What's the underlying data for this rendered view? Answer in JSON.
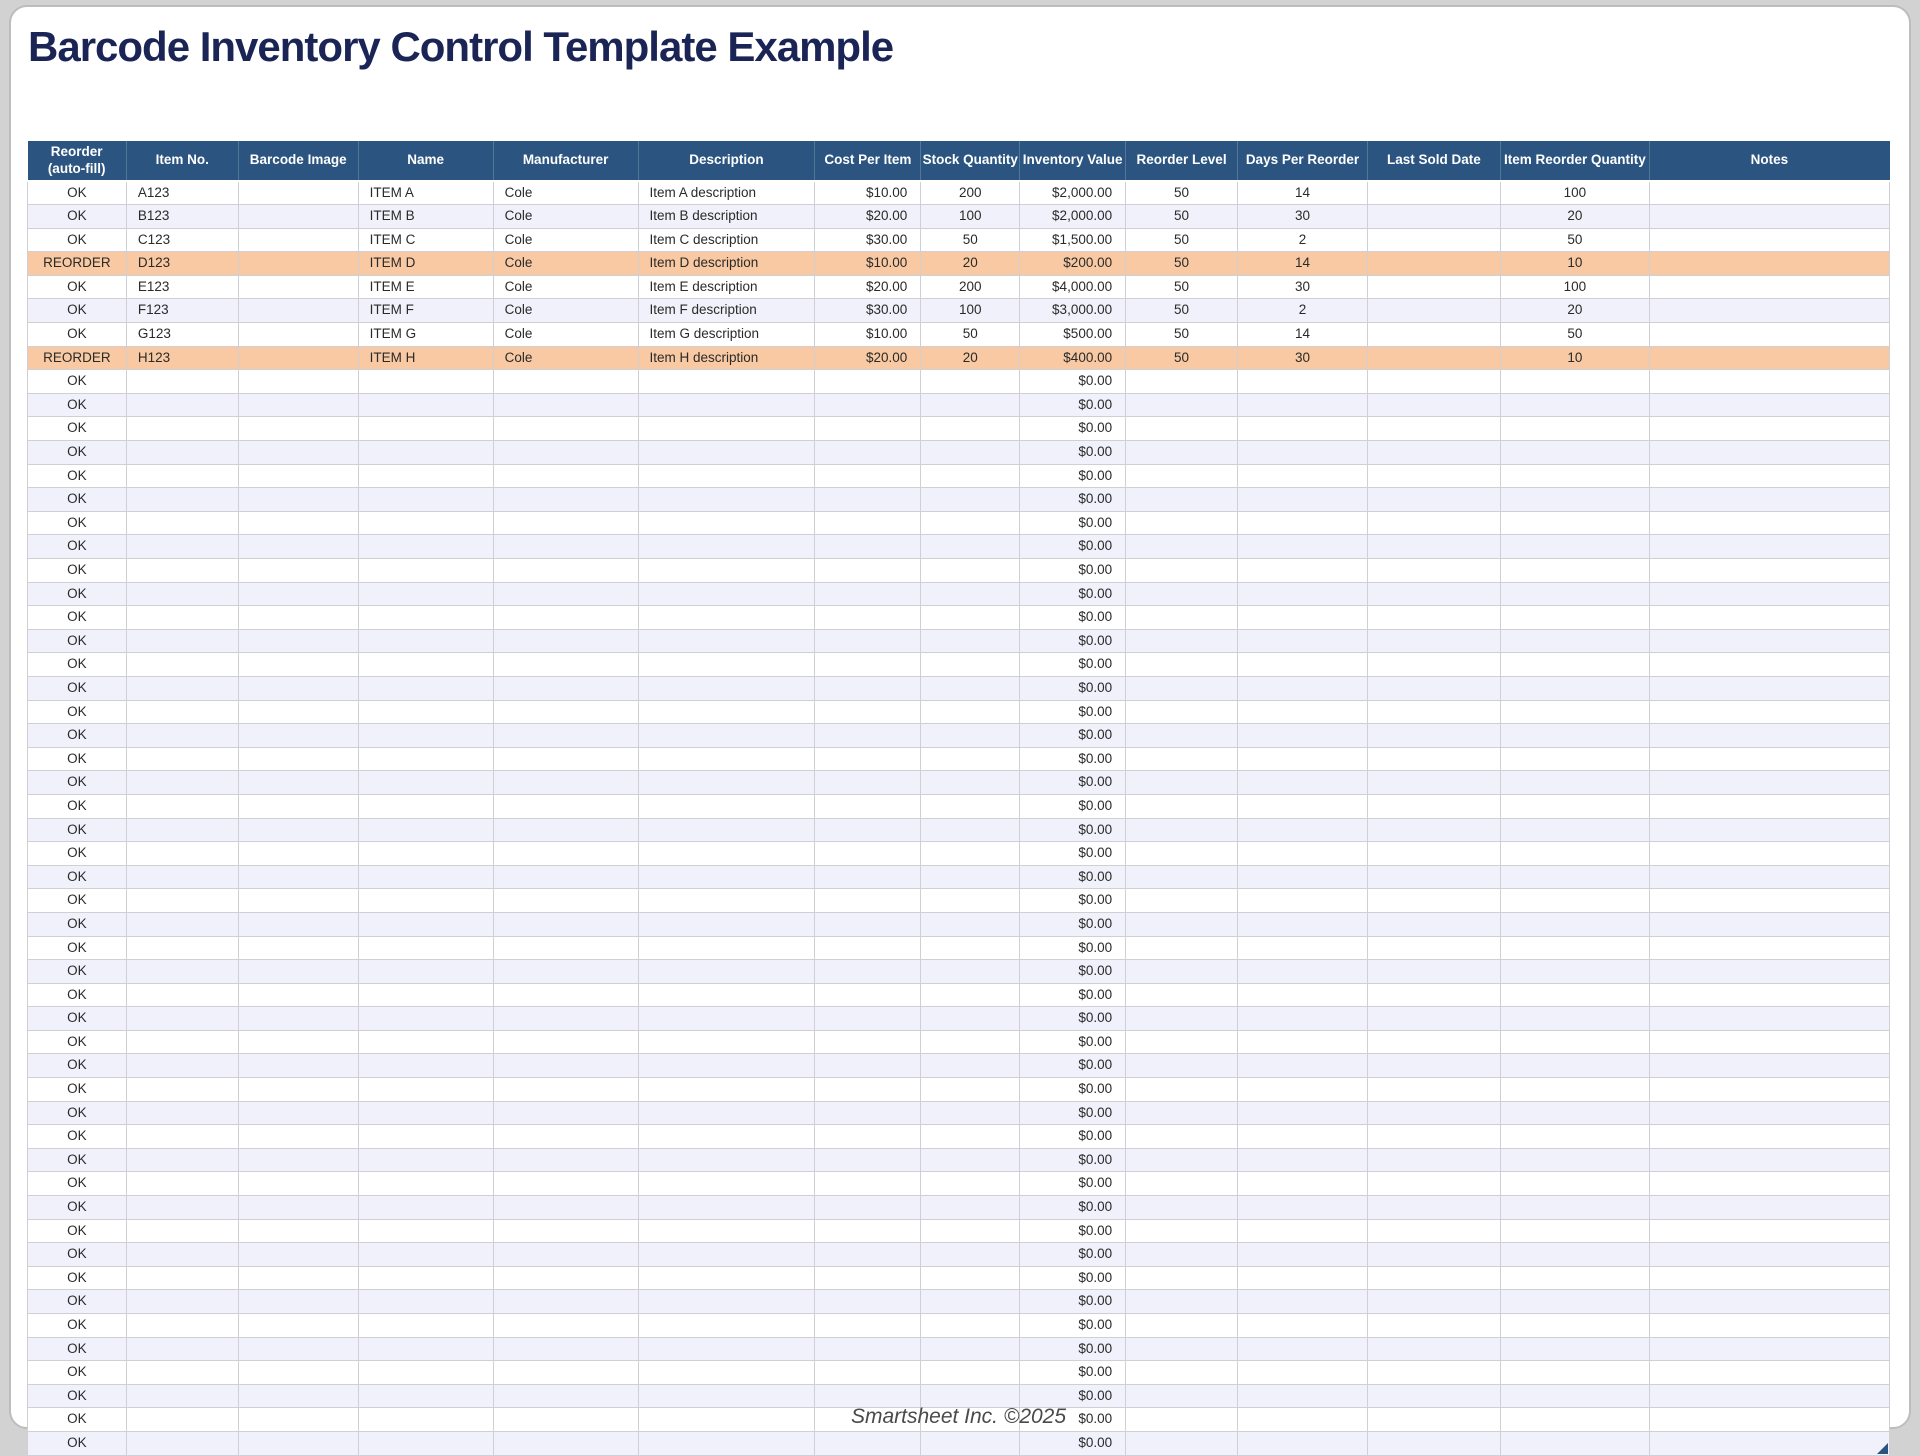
{
  "title": "Barcode Inventory Control Template Example",
  "footer": "Smartsheet Inc. ©2025",
  "colors": {
    "title_text": "#1a2556",
    "header_bg": "#2b5580",
    "header_text": "#ffffff",
    "reorder_row_bg": "#f8c9a2",
    "alt_row_bg": "#f0f1fa",
    "grid_line": "#cfcfd4",
    "footer_text": "#4a4a4a",
    "resize_handle": "#2b5580"
  },
  "table": {
    "columns": [
      {
        "id": "reorder",
        "label": "Reorder\n(auto-fill)",
        "width": 5.31,
        "align": "center"
      },
      {
        "id": "item_no",
        "label": "Item No.",
        "width": 6.01,
        "align": "left"
      },
      {
        "id": "barcode_image",
        "label": "Barcode Image",
        "width": 6.44,
        "align": "left"
      },
      {
        "id": "name",
        "label": "Name",
        "width": 7.25,
        "align": "left"
      },
      {
        "id": "manufacturer",
        "label": "Manufacturer",
        "width": 7.78,
        "align": "left"
      },
      {
        "id": "description",
        "label": "Description",
        "width": 9.5,
        "align": "left"
      },
      {
        "id": "cost_per_item",
        "label": "Cost Per Item",
        "width": 5.69,
        "align": "right"
      },
      {
        "id": "stock_quantity",
        "label": "Stock Quantity",
        "width": 5.31,
        "align": "center"
      },
      {
        "id": "inventory_value",
        "label": "Inventory Value",
        "width": 5.69,
        "align": "right"
      },
      {
        "id": "reorder_level",
        "label": "Reorder Level",
        "width": 6.01,
        "align": "center"
      },
      {
        "id": "days_per_reorder",
        "label": "Days Per Reorder",
        "width": 6.98,
        "align": "center"
      },
      {
        "id": "last_sold_date",
        "label": "Last Sold Date",
        "width": 7.14,
        "align": "center"
      },
      {
        "id": "item_reorder_quantity",
        "label": "Item Reorder Quantity",
        "width": 8.0,
        "align": "center"
      },
      {
        "id": "notes",
        "label": "Notes",
        "width": 12.89,
        "align": "left"
      }
    ],
    "rows": [
      {
        "status": "ok",
        "reorder": "OK",
        "item_no": "A123",
        "barcode_image": "",
        "name": "ITEM A",
        "manufacturer": "Cole",
        "description": "Item A description",
        "cost_per_item": "$10.00",
        "stock_quantity": "200",
        "inventory_value": "$2,000.00",
        "reorder_level": "50",
        "days_per_reorder": "14",
        "last_sold_date": "",
        "item_reorder_quantity": "100",
        "notes": ""
      },
      {
        "status": "ok",
        "reorder": "OK",
        "item_no": "B123",
        "barcode_image": "",
        "name": "ITEM B",
        "manufacturer": "Cole",
        "description": "Item B description",
        "cost_per_item": "$20.00",
        "stock_quantity": "100",
        "inventory_value": "$2,000.00",
        "reorder_level": "50",
        "days_per_reorder": "30",
        "last_sold_date": "",
        "item_reorder_quantity": "20",
        "notes": ""
      },
      {
        "status": "ok",
        "reorder": "OK",
        "item_no": "C123",
        "barcode_image": "",
        "name": "ITEM C",
        "manufacturer": "Cole",
        "description": "Item C description",
        "cost_per_item": "$30.00",
        "stock_quantity": "50",
        "inventory_value": "$1,500.00",
        "reorder_level": "50",
        "days_per_reorder": "2",
        "last_sold_date": "",
        "item_reorder_quantity": "50",
        "notes": ""
      },
      {
        "status": "reorder",
        "reorder": "REORDER",
        "item_no": "D123",
        "barcode_image": "",
        "name": "ITEM D",
        "manufacturer": "Cole",
        "description": "Item D description",
        "cost_per_item": "$10.00",
        "stock_quantity": "20",
        "inventory_value": "$200.00",
        "reorder_level": "50",
        "days_per_reorder": "14",
        "last_sold_date": "",
        "item_reorder_quantity": "10",
        "notes": ""
      },
      {
        "status": "ok",
        "reorder": "OK",
        "item_no": "E123",
        "barcode_image": "",
        "name": "ITEM E",
        "manufacturer": "Cole",
        "description": "Item E description",
        "cost_per_item": "$20.00",
        "stock_quantity": "200",
        "inventory_value": "$4,000.00",
        "reorder_level": "50",
        "days_per_reorder": "30",
        "last_sold_date": "",
        "item_reorder_quantity": "100",
        "notes": ""
      },
      {
        "status": "ok",
        "reorder": "OK",
        "item_no": "F123",
        "barcode_image": "",
        "name": "ITEM F",
        "manufacturer": "Cole",
        "description": "Item F description",
        "cost_per_item": "$30.00",
        "stock_quantity": "100",
        "inventory_value": "$3,000.00",
        "reorder_level": "50",
        "days_per_reorder": "2",
        "last_sold_date": "",
        "item_reorder_quantity": "20",
        "notes": ""
      },
      {
        "status": "ok",
        "reorder": "OK",
        "item_no": "G123",
        "barcode_image": "",
        "name": "ITEM G",
        "manufacturer": "Cole",
        "description": "Item G description",
        "cost_per_item": "$10.00",
        "stock_quantity": "50",
        "inventory_value": "$500.00",
        "reorder_level": "50",
        "days_per_reorder": "14",
        "last_sold_date": "",
        "item_reorder_quantity": "50",
        "notes": ""
      },
      {
        "status": "reorder",
        "reorder": "REORDER",
        "item_no": "H123",
        "barcode_image": "",
        "name": "ITEM H",
        "manufacturer": "Cole",
        "description": "Item H description",
        "cost_per_item": "$20.00",
        "stock_quantity": "20",
        "inventory_value": "$400.00",
        "reorder_level": "50",
        "days_per_reorder": "30",
        "last_sold_date": "",
        "item_reorder_quantity": "10",
        "notes": ""
      }
    ],
    "empty_row": {
      "count": 46,
      "reorder": "OK",
      "inventory_value": "$0.00"
    }
  }
}
